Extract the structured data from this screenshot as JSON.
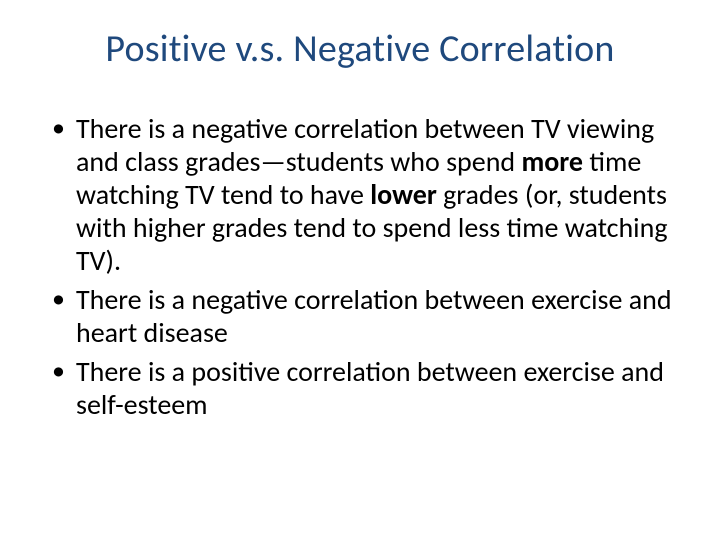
{
  "title": {
    "text": "Positive v.s. Negative Correlation",
    "color": "#1f497d",
    "fontsize": 38
  },
  "bullets": [
    {
      "pre": "There is a negative correlation between TV viewing and class grades—students who spend ",
      "bold1": "more",
      "mid": " time watching TV tend to have ",
      "bold2": "lower",
      "post": " grades (or, students with higher grades tend to spend less time watching TV)."
    },
    {
      "pre": "There is a negative correlation between exercise and heart disease",
      "bold1": "",
      "mid": "",
      "bold2": "",
      "post": ""
    },
    {
      "pre": "There is a positive correlation between exercise and self-esteem",
      "bold1": "",
      "mid": "",
      "bold2": "",
      "post": ""
    }
  ],
  "body_fontsize": 28,
  "body_color": "#000000",
  "background_color": "#ffffff"
}
